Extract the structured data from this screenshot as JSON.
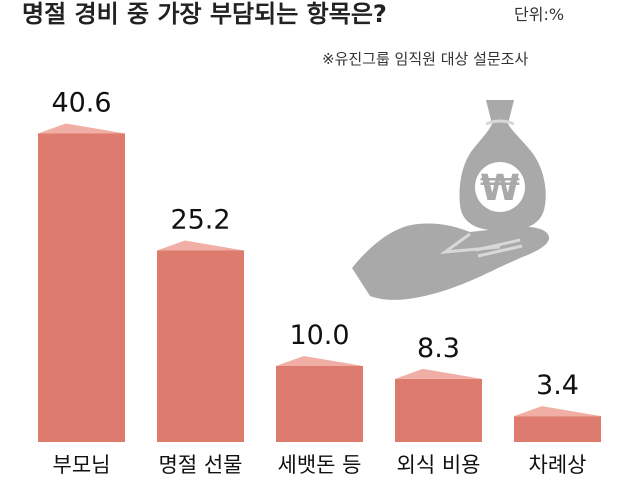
{
  "chart_data": {
    "type": "bar",
    "title": "명절 경비 중 가장 부담되는 항목은?",
    "unit": "단위:%",
    "source_note": "※유진그룹 임직원 대상 설문조사",
    "categories": [
      "부모님",
      "명절 선물",
      "세뱃돈 등",
      "외식 비용",
      "차례상"
    ],
    "values": [
      40.6,
      25.2,
      10.0,
      8.3,
      3.4
    ],
    "value_labels": [
      "40.6",
      "25.2",
      "10.0",
      "8.3",
      "3.4"
    ],
    "ylim": [
      0,
      45
    ],
    "grid": false,
    "legend": "none",
    "colors": {
      "bar": "#dd7b6e",
      "bar_top": "#f0aea4",
      "icon": "#a9a9a9",
      "icon_dark": "#8e8e8e"
    }
  },
  "illustration": {
    "bag_icon": "money-bag-icon",
    "hand_icon": "hand-icon",
    "currency_symbol": "₩"
  }
}
